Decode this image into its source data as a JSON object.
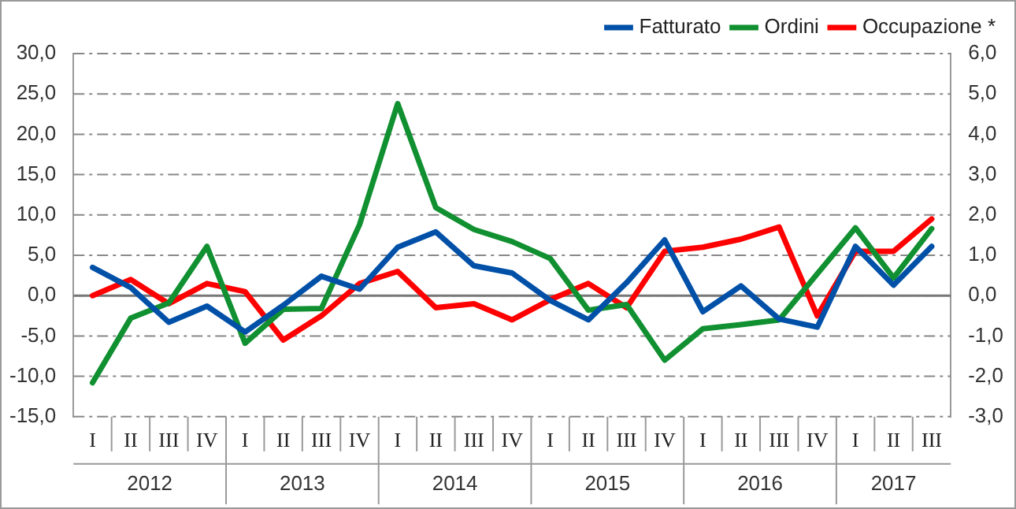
{
  "chart_data": {
    "type": "line",
    "categories": [
      "I",
      "II",
      "III",
      "IV",
      "I",
      "II",
      "III",
      "IV",
      "I",
      "II",
      "III",
      "IV",
      "I",
      "II",
      "III",
      "IV",
      "I",
      "II",
      "III",
      "IV",
      "I",
      "II",
      "III"
    ],
    "annotations": [
      "2012",
      "2013",
      "2014",
      "2015",
      "2016",
      "2017"
    ],
    "series": [
      {
        "name": "Fatturato",
        "color": "#0050a8",
        "values": [
          3.5,
          1.0,
          -3.3,
          -1.3,
          -4.5,
          -1.2,
          2.4,
          0.8,
          6.0,
          7.9,
          3.7,
          2.8,
          -0.6,
          -3.0,
          1.6,
          6.9,
          -2.0,
          1.2,
          -2.9,
          -3.9,
          6.1,
          1.3,
          6.1
        ]
      },
      {
        "name": "Ordini",
        "color": "#109030",
        "values": [
          -10.8,
          -2.8,
          -0.9,
          6.1,
          -5.9,
          -1.7,
          -1.6,
          8.8,
          23.8,
          10.9,
          8.2,
          6.7,
          4.6,
          -1.8,
          -1.1,
          -8.0,
          -4.1,
          -3.6,
          -3.0,
          2.7,
          8.4,
          2.2,
          8.3
        ]
      },
      {
        "name": "Occupazione *",
        "color": "#ff0000",
        "axis": "y2",
        "values": [
          0.0,
          0.4,
          -0.2,
          0.3,
          0.1,
          -1.1,
          -0.5,
          0.3,
          0.6,
          -0.3,
          -0.2,
          -0.6,
          -0.1,
          0.3,
          -0.3,
          1.1,
          1.2,
          1.4,
          1.7,
          -0.5,
          1.1,
          1.1,
          1.9
        ]
      }
    ],
    "ylim": [
      -15,
      30
    ],
    "yticks": [
      {
        "value": -15,
        "label": "-15,0"
      },
      {
        "value": -10,
        "label": "-10,0"
      },
      {
        "value": -5,
        "label": "-5,0"
      },
      {
        "value": 0,
        "label": "0,0"
      },
      {
        "value": 5,
        "label": "5,0"
      },
      {
        "value": 10,
        "label": "10,0"
      },
      {
        "value": 15,
        "label": "15,0"
      },
      {
        "value": 20,
        "label": "20,0"
      },
      {
        "value": 25,
        "label": "25,0"
      },
      {
        "value": 30,
        "label": "30,0"
      }
    ],
    "y2lim": [
      -3,
      6
    ],
    "y2ticks": [
      {
        "value": -3,
        "label": "-3,0"
      },
      {
        "value": -2,
        "label": "-2,0"
      },
      {
        "value": -1,
        "label": "-1,0"
      },
      {
        "value": 0,
        "label": "0,0"
      },
      {
        "value": 1,
        "label": "1,0"
      },
      {
        "value": 2,
        "label": "2,0"
      },
      {
        "value": 3,
        "label": "3,0"
      },
      {
        "value": 4,
        "label": "4,0"
      },
      {
        "value": 5,
        "label": "5,0"
      },
      {
        "value": 6,
        "label": "6,0"
      }
    ],
    "grid": "y",
    "legend": "top right",
    "marker": "none",
    "line_style": "solid"
  }
}
